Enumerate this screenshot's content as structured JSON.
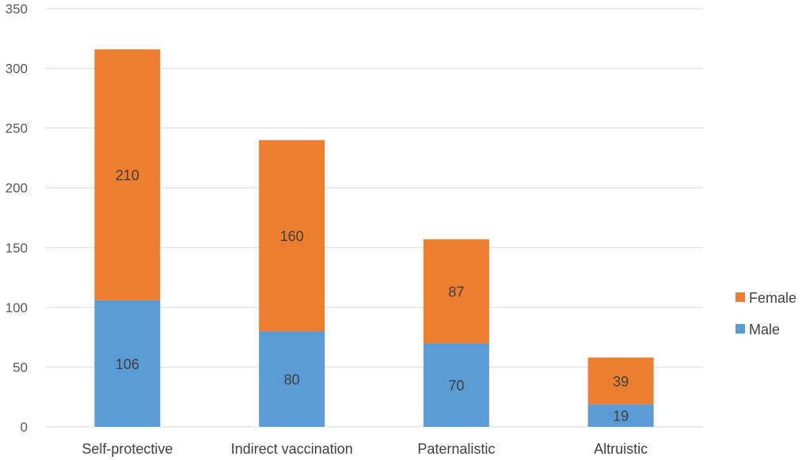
{
  "chart_data": {
    "type": "bar",
    "stacked": true,
    "categories": [
      "Self-protective",
      "Indirect vaccination",
      "Paternalistic",
      "Altruistic"
    ],
    "series": [
      {
        "name": "Male",
        "values": [
          106,
          80,
          70,
          19
        ],
        "color": "#5b9bd5"
      },
      {
        "name": "Female",
        "values": [
          210,
          160,
          87,
          39
        ],
        "color": "#ed7d31"
      }
    ],
    "title": "",
    "xlabel": "",
    "ylabel": "",
    "ylim": [
      0,
      350
    ],
    "yticks": [
      0,
      50,
      100,
      150,
      200,
      250,
      300,
      350
    ],
    "grid": true,
    "gridline_color": "#d9d9d9",
    "legend_position": "right"
  }
}
